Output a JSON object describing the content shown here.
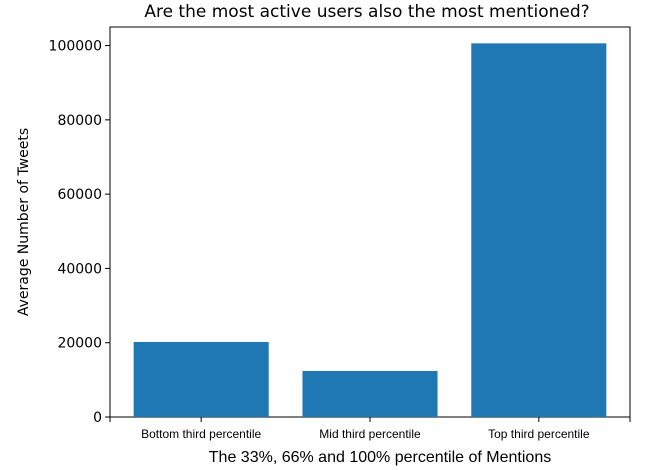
{
  "chart_data": {
    "type": "bar",
    "title": "Are the most active users also the most mentioned?",
    "xlabel": "The 33%, 66% and 100% percentile of Mentions",
    "ylabel": "Average Number of Tweets",
    "categories": [
      "Bottom third percentile",
      "Mid third percentile",
      "Top third percentile"
    ],
    "values": [
      20200,
      12400,
      100600
    ],
    "ylim": [
      0,
      105000
    ],
    "yticks": [
      0,
      20000,
      40000,
      60000,
      80000,
      100000
    ],
    "ytick_labels": [
      "0",
      "20000",
      "40000",
      "60000",
      "80000",
      "100000"
    ],
    "bar_color": "#1f77b4",
    "grid": false,
    "legend": null
  }
}
